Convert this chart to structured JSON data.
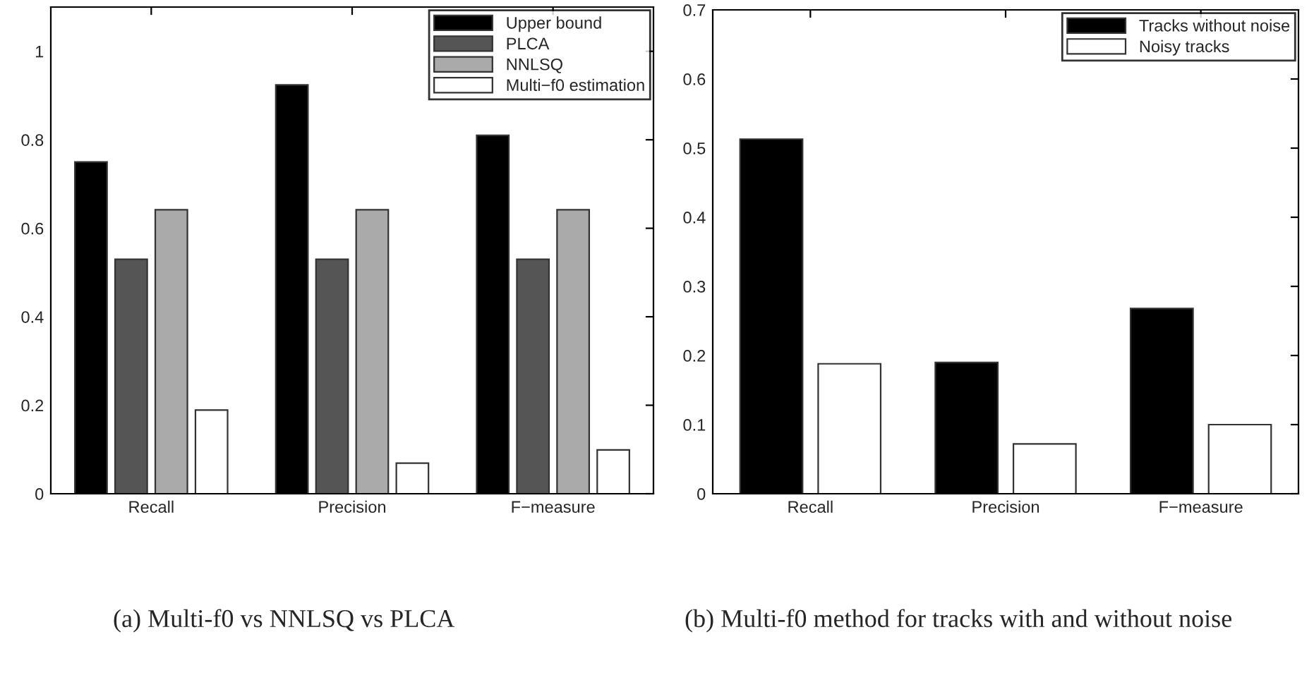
{
  "chart_data": [
    {
      "type": "bar",
      "categories": [
        "Recall",
        "Precision",
        "F−measure"
      ],
      "ylim": [
        0,
        1.1
      ],
      "yticks": [
        0,
        0.2,
        0.4,
        0.6,
        0.8,
        1
      ],
      "grid": false,
      "legend": "top right",
      "series": [
        {
          "name": "Upper bound",
          "color": "#000000",
          "values": [
            0.75,
            0.924,
            0.81
          ]
        },
        {
          "name": "PLCA",
          "color": "#555555",
          "values": [
            0.53,
            0.53,
            0.53
          ]
        },
        {
          "name": "NNLSQ",
          "color": "#aaaaaa",
          "values": [
            0.642,
            0.642,
            0.642
          ]
        },
        {
          "name": "Multi−f0 estimation",
          "color": "#ffffff",
          "values": [
            0.189,
            0.069,
            0.099
          ]
        }
      ],
      "annotations": [
        "(a) Multi-f0 vs NNLSQ vs PLCA"
      ]
    },
    {
      "type": "bar",
      "categories": [
        "Recall",
        "Precision",
        "F−measure"
      ],
      "ylim": [
        0,
        0.7
      ],
      "yticks": [
        0,
        0.1,
        0.2,
        0.3,
        0.4,
        0.5,
        0.6,
        0.7
      ],
      "grid": false,
      "legend": "top right",
      "series": [
        {
          "name": "Tracks without noise",
          "color": "#000000",
          "values": [
            0.513,
            0.19,
            0.268
          ]
        },
        {
          "name": "Noisy tracks",
          "color": "#ffffff",
          "values": [
            0.188,
            0.072,
            0.1
          ]
        }
      ],
      "annotations": [
        "(b) Multi-f0 method for tracks with and without noise"
      ]
    }
  ]
}
